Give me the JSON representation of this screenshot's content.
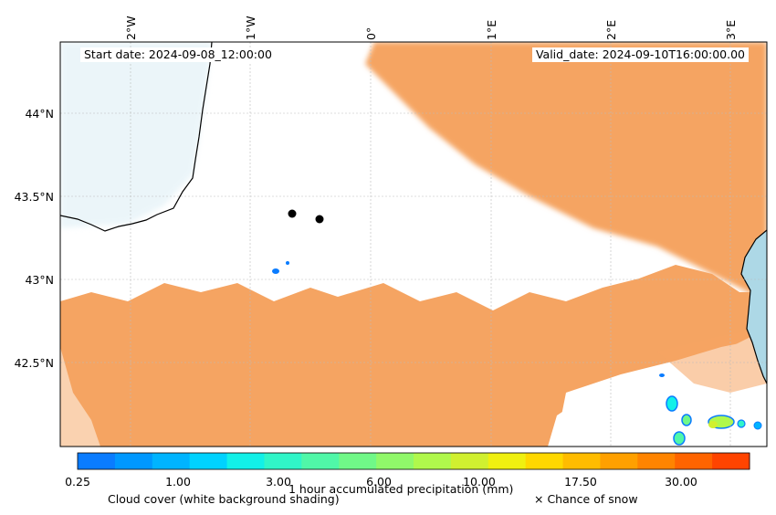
{
  "header": {
    "start_date": "Start date: 2024-09-08_12:00:00",
    "valid_date": "Valid_date: 2024-09-10T16:00:00.00"
  },
  "axes": {
    "lon_ticks": [
      "2°W",
      "1°W",
      "0°",
      "1°E",
      "2°E",
      "3°E"
    ],
    "lat_ticks": [
      "44°N",
      "43.5°N",
      "43°N",
      "42.5°N"
    ]
  },
  "colorbar": {
    "ticks": [
      "0.25",
      "1.00",
      "3.00",
      "6.00",
      "10.00",
      "17.50",
      "30.00"
    ],
    "title": "1 hour accumulated precipitation (mm)",
    "colors": [
      "#0a7cff",
      "#0098ff",
      "#00b4ff",
      "#00d2ff",
      "#12f0e8",
      "#30f5c8",
      "#50f7a8",
      "#70f888",
      "#90f86a",
      "#b0f84c",
      "#d0f030",
      "#f0f010",
      "#ffd800",
      "#ffbc00",
      "#ffa000",
      "#ff8400",
      "#ff6400",
      "#ff4400"
    ]
  },
  "legend": {
    "cloud_cover": "Cloud cover (white background shading)",
    "snow": "× Chance of snow"
  },
  "colors": {
    "cloud": "#f5a462",
    "sea": "#add8e6",
    "coast": "#000000"
  }
}
